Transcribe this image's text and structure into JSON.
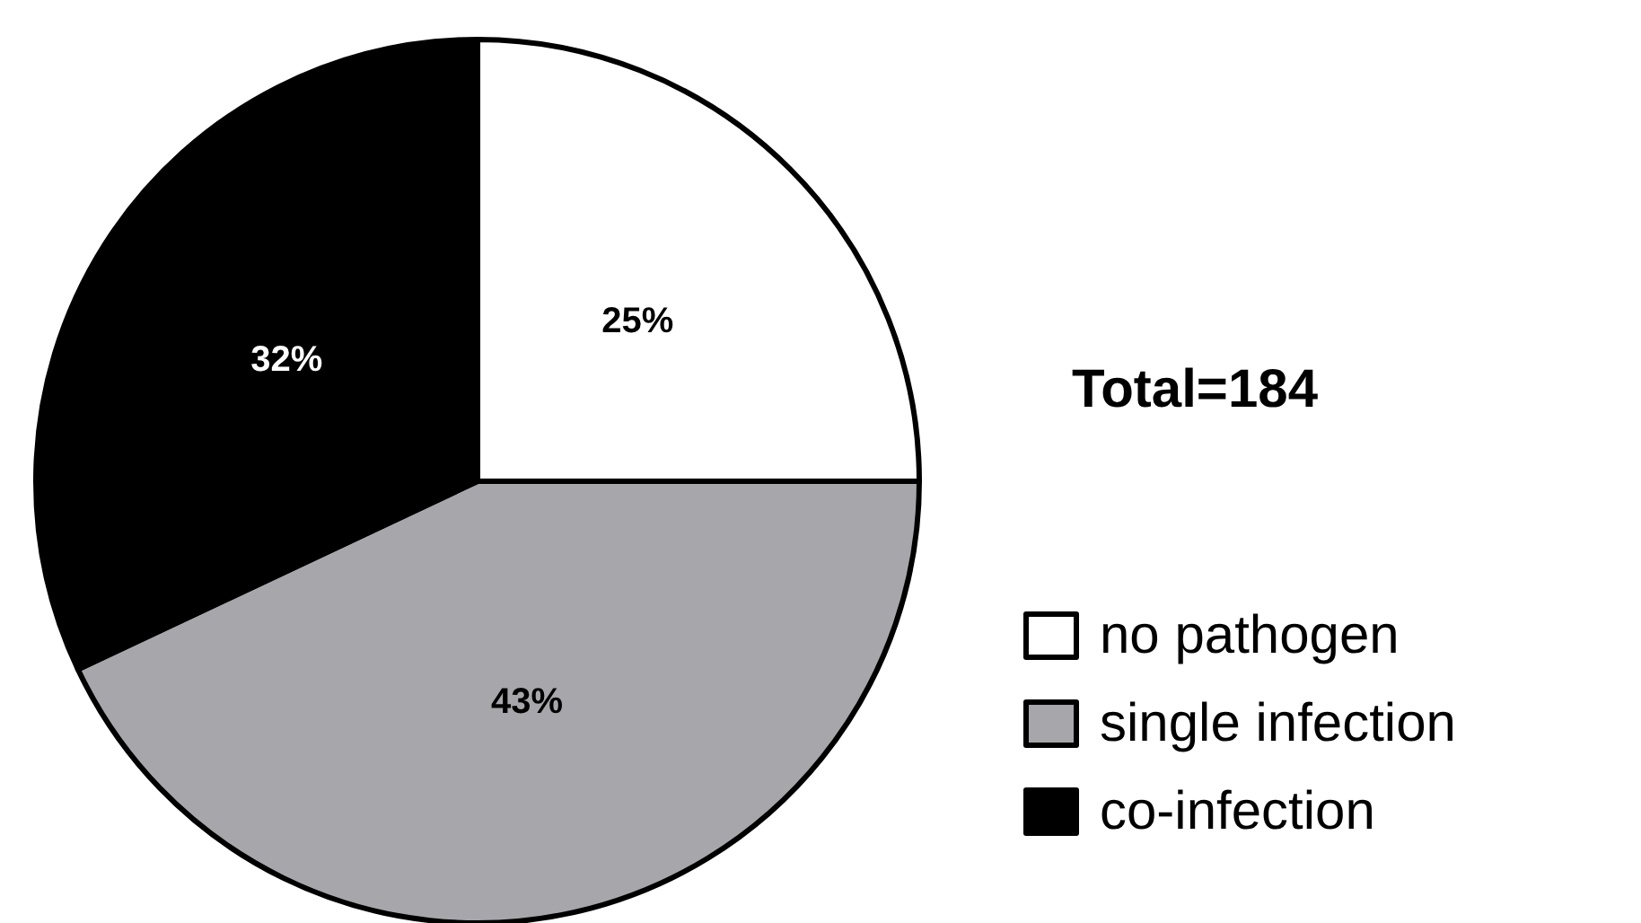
{
  "chart_data": {
    "type": "pie",
    "categories": [
      "no pathogen",
      "single infection",
      "co-infection"
    ],
    "values": [
      25,
      43,
      32
    ],
    "colors": [
      "#ffffff",
      "#a7a6ab",
      "#000000"
    ],
    "value_labels": [
      "25%",
      "43%",
      "32%"
    ],
    "annotations": [
      "Total=184"
    ],
    "legend": "bottom right"
  }
}
